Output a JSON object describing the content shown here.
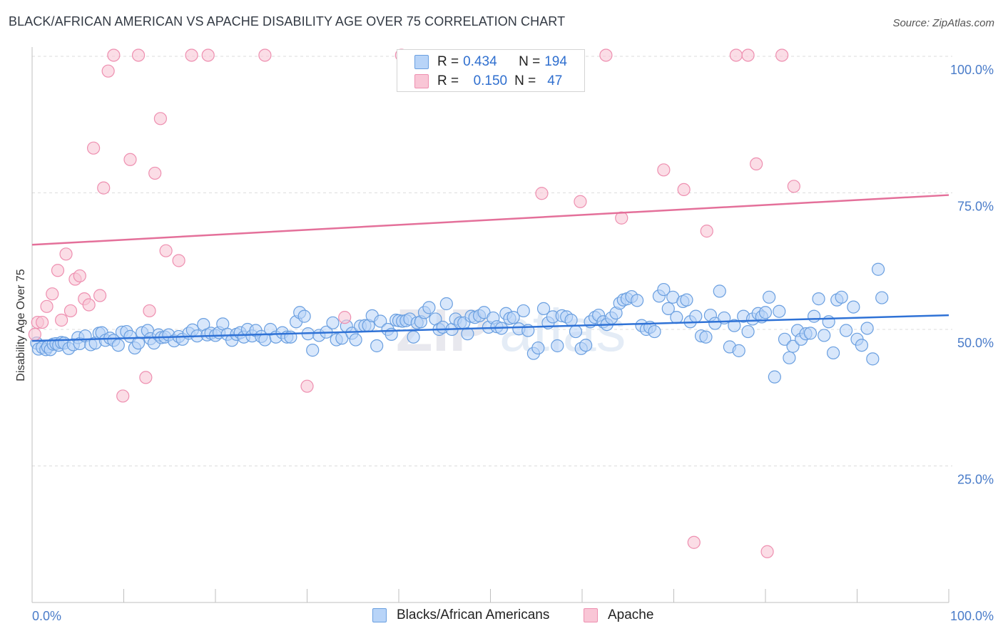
{
  "title": "BLACK/AFRICAN AMERICAN VS APACHE DISABILITY AGE OVER 75 CORRELATION CHART",
  "source": "Source: ZipAtlas.com",
  "legend": {
    "r_label": "R =",
    "n_label": "N =",
    "rows": [
      {
        "r": "0.434",
        "n": "194",
        "fill": "#b8d4f8",
        "stroke": "#6a9fe0"
      },
      {
        "r": "0.150",
        "n": "47",
        "fill": "#f9c6d6",
        "stroke": "#ee8fb0"
      }
    ]
  },
  "bottom_legend": [
    "Blacks/African Americans",
    "Apache"
  ],
  "colors": {
    "blue_fill": "#b8d4f8",
    "blue_stroke": "#6a9fe0",
    "blue_line": "#2f72d6",
    "pink_fill": "#f9c6d6",
    "pink_stroke": "#ee8fb0",
    "pink_line": "#e4709a",
    "grid": "#dcdcdc",
    "tick_text": "#4a7cc9"
  },
  "chart_data": {
    "type": "scatter",
    "title": "BLACK/AFRICAN AMERICAN VS APACHE DISABILITY AGE OVER 75 CORRELATION CHART",
    "xlabel": "",
    "ylabel": "Disability Age Over 75",
    "xlim": [
      0,
      100
    ],
    "ylim": [
      0,
      103
    ],
    "x_tick_labels": [
      "0.0%",
      "100.0%"
    ],
    "y_ticks": [
      25,
      50,
      75,
      100
    ],
    "y_tick_labels": [
      "25.0%",
      "50.0%",
      "75.0%",
      "100.0%"
    ],
    "grid": "horizontal dashed",
    "watermark": "ZIPatlas",
    "series": [
      {
        "name": "Blacks/African Americans",
        "trend": {
          "x": [
            0,
            100
          ],
          "y": [
            47.9,
            52.6
          ]
        },
        "points": [
          [
            0.5,
            47.5
          ],
          [
            0.7,
            46.4
          ],
          [
            1.1,
            46.7
          ],
          [
            1.5,
            46.3
          ],
          [
            1.7,
            46.8
          ],
          [
            2.0,
            46.3
          ],
          [
            2.3,
            47.3
          ],
          [
            2.6,
            47.4
          ],
          [
            2.9,
            47.1
          ],
          [
            3.2,
            47.6
          ],
          [
            3.5,
            47.5
          ],
          [
            4.0,
            46.5
          ],
          [
            4.5,
            47.2
          ],
          [
            5.0,
            48.5
          ],
          [
            5.2,
            47.4
          ],
          [
            5.8,
            48.8
          ],
          [
            6.4,
            47.2
          ],
          [
            6.9,
            47.5
          ],
          [
            7.3,
            49.3
          ],
          [
            7.6,
            49.4
          ],
          [
            8.0,
            48.0
          ],
          [
            8.5,
            48.4
          ],
          [
            8.9,
            48.0
          ],
          [
            9.4,
            47.1
          ],
          [
            9.8,
            49.5
          ],
          [
            10.3,
            49.6
          ],
          [
            10.7,
            48.7
          ],
          [
            11.2,
            46.6
          ],
          [
            11.6,
            47.5
          ],
          [
            12.0,
            49.4
          ],
          [
            12.6,
            49.8
          ],
          [
            12.9,
            48.3
          ],
          [
            13.3,
            47.5
          ],
          [
            13.8,
            49.0
          ],
          [
            14.1,
            48.5
          ],
          [
            14.5,
            48.6
          ],
          [
            14.9,
            49.0
          ],
          [
            15.5,
            47.9
          ],
          [
            16.0,
            48.7
          ],
          [
            16.4,
            48.2
          ],
          [
            17.1,
            49.3
          ],
          [
            17.5,
            49.9
          ],
          [
            18.0,
            48.8
          ],
          [
            18.7,
            50.9
          ],
          [
            19.1,
            49.0
          ],
          [
            19.5,
            49.3
          ],
          [
            20.0,
            48.9
          ],
          [
            20.4,
            49.4
          ],
          [
            20.8,
            51.0
          ],
          [
            21.3,
            49.1
          ],
          [
            21.8,
            48.0
          ],
          [
            22.3,
            49.1
          ],
          [
            22.7,
            49.4
          ],
          [
            23.1,
            48.6
          ],
          [
            23.5,
            50.0
          ],
          [
            24.0,
            48.8
          ],
          [
            24.4,
            49.8
          ],
          [
            25.0,
            48.7
          ],
          [
            25.4,
            48.1
          ],
          [
            26.0,
            50.0
          ],
          [
            26.6,
            48.6
          ],
          [
            27.3,
            49.4
          ],
          [
            27.8,
            48.6
          ],
          [
            28.2,
            48.6
          ],
          [
            28.8,
            51.4
          ],
          [
            29.2,
            53.1
          ],
          [
            29.7,
            52.4
          ],
          [
            30.1,
            49.2
          ],
          [
            30.6,
            46.2
          ],
          [
            31.3,
            48.9
          ],
          [
            32.1,
            49.5
          ],
          [
            32.8,
            51.2
          ],
          [
            33.2,
            48.1
          ],
          [
            33.8,
            48.4
          ],
          [
            34.3,
            50.6
          ],
          [
            34.9,
            49.3
          ],
          [
            35.3,
            48.1
          ],
          [
            35.8,
            50.6
          ],
          [
            36.3,
            50.7
          ],
          [
            36.7,
            50.7
          ],
          [
            37.1,
            52.5
          ],
          [
            37.6,
            47.0
          ],
          [
            38.0,
            51.5
          ],
          [
            38.8,
            50.0
          ],
          [
            39.2,
            49.1
          ],
          [
            39.7,
            51.7
          ],
          [
            40.0,
            51.6
          ],
          [
            40.4,
            51.5
          ],
          [
            40.8,
            51.6
          ],
          [
            41.2,
            51.9
          ],
          [
            41.6,
            48.6
          ],
          [
            42.0,
            51.2
          ],
          [
            42.4,
            51.4
          ],
          [
            42.8,
            53.1
          ],
          [
            43.3,
            54.0
          ],
          [
            44.0,
            51.9
          ],
          [
            44.4,
            50.0
          ],
          [
            44.8,
            50.4
          ],
          [
            45.2,
            54.7
          ],
          [
            45.8,
            50.0
          ],
          [
            46.2,
            51.9
          ],
          [
            46.7,
            51.2
          ],
          [
            47.1,
            51.2
          ],
          [
            47.5,
            49.2
          ],
          [
            47.9,
            52.4
          ],
          [
            48.3,
            52.2
          ],
          [
            48.8,
            52.5
          ],
          [
            49.3,
            53.1
          ],
          [
            49.8,
            50.4
          ],
          [
            50.3,
            52.1
          ],
          [
            50.7,
            50.5
          ],
          [
            51.2,
            50.2
          ],
          [
            51.7,
            52.9
          ],
          [
            52.1,
            52.0
          ],
          [
            52.5,
            52.2
          ],
          [
            53.1,
            50.1
          ],
          [
            53.6,
            53.4
          ],
          [
            54.1,
            49.8
          ],
          [
            54.7,
            45.6
          ],
          [
            55.2,
            46.6
          ],
          [
            55.8,
            53.8
          ],
          [
            56.3,
            51.2
          ],
          [
            56.8,
            52.3
          ],
          [
            57.3,
            47.0
          ],
          [
            57.8,
            52.5
          ],
          [
            58.3,
            52.3
          ],
          [
            58.8,
            51.7
          ],
          [
            59.3,
            49.6
          ],
          [
            59.9,
            46.5
          ],
          [
            60.4,
            47.1
          ],
          [
            60.9,
            51.4
          ],
          [
            61.4,
            52.2
          ],
          [
            61.8,
            52.6
          ],
          [
            62.3,
            51.4
          ],
          [
            62.7,
            50.9
          ],
          [
            63.2,
            52.1
          ],
          [
            63.7,
            53.0
          ],
          [
            64.1,
            54.8
          ],
          [
            64.5,
            55.4
          ],
          [
            64.9,
            55.6
          ],
          [
            65.4,
            56.0
          ],
          [
            66.0,
            55.3
          ],
          [
            66.5,
            50.7
          ],
          [
            67.0,
            50.0
          ],
          [
            67.4,
            50.4
          ],
          [
            67.9,
            49.6
          ],
          [
            68.4,
            56.1
          ],
          [
            68.9,
            57.3
          ],
          [
            69.4,
            53.8
          ],
          [
            69.9,
            55.9
          ],
          [
            70.3,
            52.2
          ],
          [
            71.0,
            55.1
          ],
          [
            71.4,
            55.4
          ],
          [
            71.8,
            51.4
          ],
          [
            72.4,
            52.4
          ],
          [
            73.0,
            48.8
          ],
          [
            73.5,
            48.6
          ],
          [
            74.0,
            52.6
          ],
          [
            74.5,
            51.1
          ],
          [
            75.0,
            57.0
          ],
          [
            75.5,
            52.1
          ],
          [
            76.1,
            46.8
          ],
          [
            76.6,
            50.7
          ],
          [
            77.1,
            46.1
          ],
          [
            77.6,
            52.4
          ],
          [
            78.1,
            49.6
          ],
          [
            78.6,
            51.9
          ],
          [
            79.2,
            52.9
          ],
          [
            79.6,
            52.3
          ],
          [
            80.0,
            53.1
          ],
          [
            80.4,
            55.9
          ],
          [
            81.0,
            41.3
          ],
          [
            81.5,
            53.3
          ],
          [
            82.1,
            48.2
          ],
          [
            82.6,
            44.8
          ],
          [
            83.0,
            46.9
          ],
          [
            83.5,
            49.8
          ],
          [
            83.9,
            48.2
          ],
          [
            84.4,
            49.2
          ],
          [
            84.9,
            49.3
          ],
          [
            85.3,
            52.4
          ],
          [
            85.8,
            55.6
          ],
          [
            86.4,
            48.9
          ],
          [
            86.9,
            51.4
          ],
          [
            87.4,
            45.7
          ],
          [
            87.8,
            55.4
          ],
          [
            88.3,
            55.9
          ],
          [
            88.8,
            49.8
          ],
          [
            89.6,
            54.1
          ],
          [
            90.0,
            48.2
          ],
          [
            90.5,
            47.1
          ],
          [
            91.1,
            50.2
          ],
          [
            91.7,
            44.6
          ],
          [
            92.3,
            61.0
          ],
          [
            92.7,
            55.8
          ]
        ]
      },
      {
        "name": "Apache",
        "trend": {
          "x": [
            0,
            100
          ],
          "y": [
            65.5,
            74.6
          ]
        },
        "points": [
          [
            0.3,
            49.1
          ],
          [
            0.6,
            51.3
          ],
          [
            1.1,
            51.3
          ],
          [
            1.6,
            54.2
          ],
          [
            2.2,
            56.5
          ],
          [
            2.8,
            60.8
          ],
          [
            3.2,
            51.7
          ],
          [
            3.7,
            63.8
          ],
          [
            4.2,
            53.4
          ],
          [
            4.7,
            59.2
          ],
          [
            5.2,
            59.8
          ],
          [
            5.7,
            55.6
          ],
          [
            6.2,
            54.5
          ],
          [
            6.7,
            83.2
          ],
          [
            7.4,
            56.2
          ],
          [
            7.8,
            75.9
          ],
          [
            8.3,
            97.3
          ],
          [
            8.9,
            100.2
          ],
          [
            9.9,
            37.8
          ],
          [
            10.7,
            81.1
          ],
          [
            11.6,
            100.2
          ],
          [
            12.4,
            41.2
          ],
          [
            12.8,
            53.4
          ],
          [
            13.4,
            78.6
          ],
          [
            14.0,
            88.6
          ],
          [
            14.6,
            64.4
          ],
          [
            16.0,
            62.6
          ],
          [
            17.4,
            100.2
          ],
          [
            19.2,
            100.2
          ],
          [
            25.4,
            100.2
          ],
          [
            30.0,
            39.6
          ],
          [
            34.1,
            52.2
          ],
          [
            40.3,
            100.2
          ],
          [
            55.6,
            74.9
          ],
          [
            59.8,
            73.4
          ],
          [
            62.6,
            100.2
          ],
          [
            64.3,
            70.4
          ],
          [
            68.9,
            79.2
          ],
          [
            71.1,
            75.6
          ],
          [
            72.2,
            11.0
          ],
          [
            73.6,
            68.0
          ],
          [
            76.8,
            100.2
          ],
          [
            78.1,
            100.2
          ],
          [
            79.0,
            80.3
          ],
          [
            80.2,
            9.3
          ],
          [
            81.8,
            100.2
          ],
          [
            83.1,
            76.2
          ]
        ]
      }
    ]
  }
}
